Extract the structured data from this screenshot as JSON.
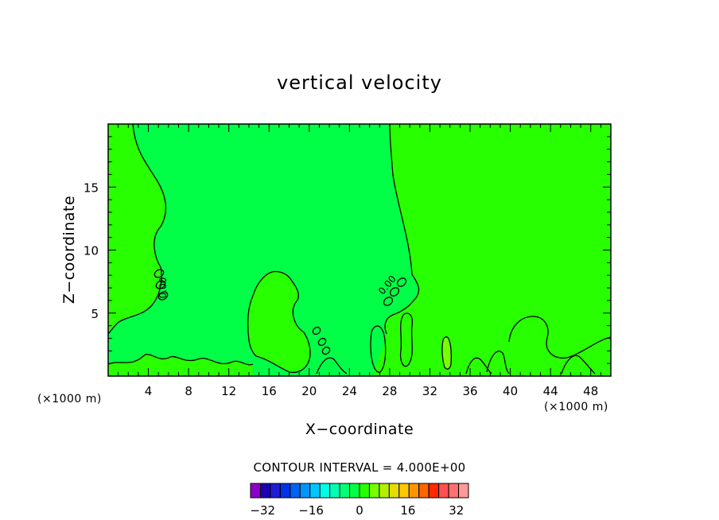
{
  "chart_data": {
    "type": "heatmap",
    "title": "vertical velocity",
    "xlabel": "X−coordinate",
    "ylabel": "Z−coordinate",
    "x_units": "(×1000 m)",
    "y_units": "(×1000 m)",
    "xlim": [
      0,
      50
    ],
    "ylim": [
      0,
      20
    ],
    "x_ticks": [
      4,
      8,
      12,
      16,
      20,
      24,
      28,
      32,
      36,
      40,
      44,
      48
    ],
    "y_ticks": [
      5,
      10,
      15
    ],
    "contour_interval_text": "CONTOUR INTERVAL = 4.000E+00",
    "contour_label": "0.00",
    "colorbar": {
      "min": -36,
      "max": 36,
      "step": 4,
      "tick_values": [
        -32,
        -16,
        0,
        16,
        32
      ],
      "tick_labels": [
        "−32",
        "−16",
        "0",
        "16",
        "32"
      ],
      "colors": [
        "#8c00c8",
        "#1e00b4",
        "#1e1ed2",
        "#0032e6",
        "#0064f0",
        "#0096f8",
        "#00c8ff",
        "#00ffe6",
        "#00ffb4",
        "#00ff78",
        "#00ff46",
        "#28ff00",
        "#78ff00",
        "#b4f000",
        "#e6dc00",
        "#ffc800",
        "#ff9600",
        "#ff6400",
        "#ff2800",
        "#ff5050",
        "#ff7070",
        "#ff9999"
      ]
    },
    "regions": [
      {
        "name": "left-upper-region",
        "value_range": [
          0,
          4
        ],
        "color": "#28ff00"
      },
      {
        "name": "center-region",
        "value_range": [
          -4,
          0
        ],
        "color": "#00ff46"
      },
      {
        "name": "right-region",
        "value_range": [
          0,
          4
        ],
        "color": "#28ff00"
      },
      {
        "name": "mid-bubble-region",
        "value_range": [
          0,
          4
        ],
        "color": "#28ff00"
      },
      {
        "name": "small-core-region",
        "value_range": [
          4,
          8
        ],
        "color": "#78ff00"
      }
    ]
  }
}
